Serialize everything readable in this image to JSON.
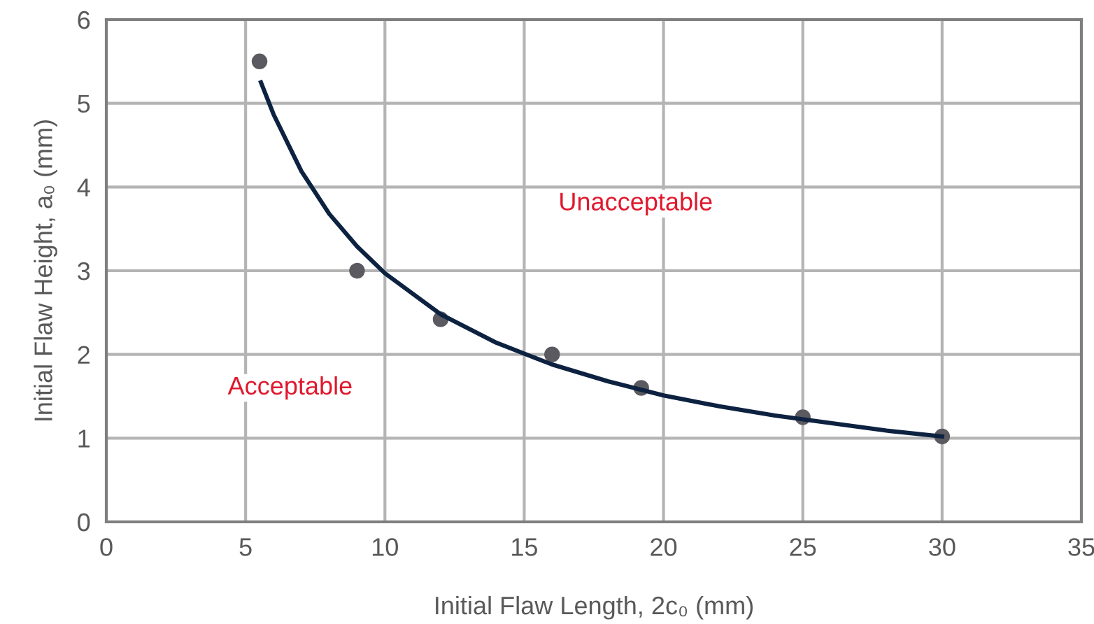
{
  "chart_data": {
    "type": "scatter",
    "xlabel": "Initial Flaw Length, 2c₀ (mm)",
    "ylabel": "Initial Flaw Height, a₀ (mm)",
    "xlim": [
      0,
      35
    ],
    "xticks": [
      0,
      5,
      10,
      15,
      20,
      25,
      30,
      35
    ],
    "ylim": [
      0,
      6
    ],
    "yticks": [
      0,
      1,
      2,
      3,
      4,
      5,
      6
    ],
    "grid": true,
    "legend": false,
    "marker": "circle",
    "annotations": [
      "Acceptable",
      "Unacceptable"
    ],
    "series": [
      {
        "color": "#5a5a60",
        "x": [
          5.5,
          9,
          12,
          16,
          19.2,
          25,
          30
        ],
        "values": [
          5.5,
          3.0,
          2.42,
          2.0,
          1.6,
          1.25,
          1.02
        ]
      },
      {
        "type": "line",
        "color": "#0d2240",
        "marker": "none",
        "line_style": "solid",
        "x": [
          5.55,
          6,
          7,
          8,
          9,
          10,
          12,
          14,
          16,
          18,
          20,
          22,
          24,
          26,
          28,
          30
        ],
        "values": [
          5.25,
          4.87,
          4.19,
          3.68,
          3.29,
          2.97,
          2.48,
          2.14,
          1.88,
          1.68,
          1.51,
          1.38,
          1.27,
          1.18,
          1.09,
          1.02
        ]
      }
    ]
  }
}
